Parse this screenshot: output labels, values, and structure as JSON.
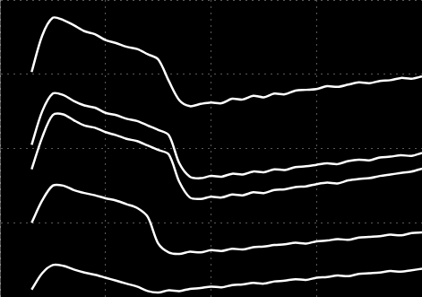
{
  "chart_data": {
    "type": "line",
    "x": [
      0.3,
      0.4,
      0.5,
      0.6,
      0.7,
      0.8,
      0.9,
      1.0,
      1.1,
      1.2,
      1.3,
      1.4,
      1.5,
      1.6,
      1.7,
      1.8,
      1.9,
      2.0,
      2.1,
      2.2,
      2.3,
      2.4,
      2.5,
      2.6,
      2.7,
      2.8,
      2.9,
      3.0,
      3.1,
      3.2,
      3.3,
      3.4,
      3.5,
      3.6,
      3.7,
      3.8,
      3.9,
      4.0
    ],
    "series": [
      {
        "color": "#ffffff",
        "values": [
          3.03,
          3.52,
          3.76,
          3.73,
          3.66,
          3.58,
          3.54,
          3.46,
          3.42,
          3.37,
          3.34,
          3.27,
          3.2,
          2.91,
          2.65,
          2.57,
          2.6,
          2.62,
          2.61,
          2.67,
          2.66,
          2.71,
          2.69,
          2.74,
          2.73,
          2.78,
          2.79,
          2.8,
          2.84,
          2.83,
          2.86,
          2.89,
          2.88,
          2.91,
          2.92,
          2.95,
          2.94,
          2.97
        ]
      },
      {
        "color": "#ffffff",
        "values": [
          2.05,
          2.5,
          2.74,
          2.72,
          2.64,
          2.58,
          2.55,
          2.48,
          2.45,
          2.4,
          2.37,
          2.31,
          2.25,
          2.18,
          1.8,
          1.62,
          1.6,
          1.63,
          1.62,
          1.66,
          1.65,
          1.69,
          1.68,
          1.72,
          1.71,
          1.75,
          1.76,
          1.78,
          1.8,
          1.79,
          1.83,
          1.85,
          1.84,
          1.88,
          1.89,
          1.91,
          1.9,
          1.94
        ]
      },
      {
        "color": "#ffffff",
        "values": [
          1.72,
          2.15,
          2.45,
          2.46,
          2.38,
          2.31,
          2.28,
          2.22,
          2.18,
          2.13,
          2.1,
          2.04,
          1.98,
          1.92,
          1.55,
          1.34,
          1.32,
          1.35,
          1.34,
          1.38,
          1.37,
          1.41,
          1.4,
          1.44,
          1.45,
          1.48,
          1.49,
          1.52,
          1.54,
          1.53,
          1.57,
          1.59,
          1.6,
          1.63,
          1.65,
          1.67,
          1.69,
          1.73
        ]
      },
      {
        "color": "#ffffff",
        "values": [
          1.0,
          1.3,
          1.5,
          1.5,
          1.44,
          1.4,
          1.37,
          1.33,
          1.3,
          1.25,
          1.2,
          1.08,
          0.72,
          0.6,
          0.58,
          0.61,
          0.6,
          0.63,
          0.62,
          0.65,
          0.64,
          0.67,
          0.68,
          0.7,
          0.71,
          0.73,
          0.72,
          0.75,
          0.76,
          0.78,
          0.77,
          0.8,
          0.81,
          0.82,
          0.84,
          0.83,
          0.86,
          0.87
        ]
      },
      {
        "color": "#ffffff",
        "values": [
          0.1,
          0.32,
          0.43,
          0.42,
          0.37,
          0.33,
          0.3,
          0.26,
          0.22,
          0.18,
          0.14,
          0.08,
          0.06,
          0.09,
          0.08,
          0.11,
          0.12,
          0.14,
          0.13,
          0.16,
          0.17,
          0.19,
          0.18,
          0.21,
          0.22,
          0.24,
          0.23,
          0.26,
          0.27,
          0.29,
          0.28,
          0.31,
          0.32,
          0.33,
          0.35,
          0.34,
          0.36,
          0.38
        ]
      }
    ],
    "xlim": [
      0,
      4
    ],
    "xticks": [
      0,
      1,
      2,
      3,
      4
    ],
    "ylim": [
      0,
      4
    ],
    "yticks": [
      0,
      1,
      2,
      3,
      4
    ],
    "grid": true,
    "tick_labels": false
  }
}
